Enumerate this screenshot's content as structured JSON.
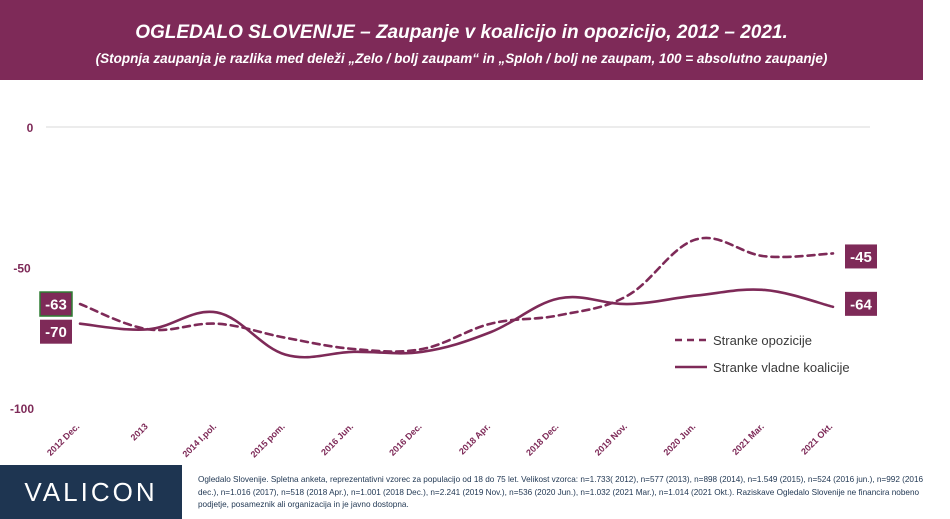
{
  "header": {
    "title": "OGLEDALO SLOVENIJE – Zaupanje v koalicijo in opozicijo, 2012 – 2021.",
    "subtitle": "(Stopnja zaupanja je razlika med deleži „Zelo / bolj zaupam“ in „Sploh / bolj ne zaupam, 100 = absolutno zaupanje)"
  },
  "chart_data": {
    "type": "line",
    "categories": [
      "2012 Dec.",
      "2013",
      "2014 I.pol.",
      "2015 pom.",
      "2016 Jun.",
      "2016 Dec.",
      "2018 Apr.",
      "2018 Dec.",
      "2019 Nov.",
      "2020 Jun.",
      "2021 Mar.",
      "2021 Okt."
    ],
    "ylim": [
      -100,
      0
    ],
    "yticks": [
      0,
      -50,
      -100
    ],
    "grid": "horizontal",
    "legend_position": "right",
    "series": [
      {
        "name": "Stranke opozicije",
        "style": "dashed",
        "values": [
          -63,
          -72,
          -70,
          -75,
          -79,
          -79,
          -70,
          -67,
          -60,
          -40,
          -46,
          -45
        ],
        "label_first": "-63",
        "label_last": "-45"
      },
      {
        "name": "Stranke vladne koalicije",
        "style": "solid",
        "values": [
          -70,
          -72,
          -66,
          -81,
          -80,
          -80,
          -73,
          -61,
          -63,
          -60,
          -58,
          -64
        ],
        "label_first": "-70",
        "label_last": "-64"
      }
    ],
    "colors": {
      "line": "#7e2a58",
      "axis_label": "#7e2a58",
      "grid": "#d9d9d9",
      "value_box": "#7e2a58",
      "value_box_border": "#2e7d32"
    }
  },
  "footer": {
    "brand": "VALICON",
    "note": "Ogledalo Slovenije. Spletna anketa, reprezentativni vzorec za populacijo od 18 do 75 let. Velikost vzorca: n=1.733( 2012), n=577 (2013), n=898 (2014), n=1.549 (2015), n=524 (2016 jun.), n=992 (2016 dec.), n=1.016 (2017), n=518 (2018 Apr.), n=1.001 (2018 Dec.), n=2.241 (2019 Nov.), n=536 (2020 Jun.), n=1.032 (2021 Mar.), n=1.014 (2021 Okt.). Raziskave Ogledalo Slovenije ne financira nobeno podjetje, posameznik ali organizacija in je javno dostopna."
  }
}
